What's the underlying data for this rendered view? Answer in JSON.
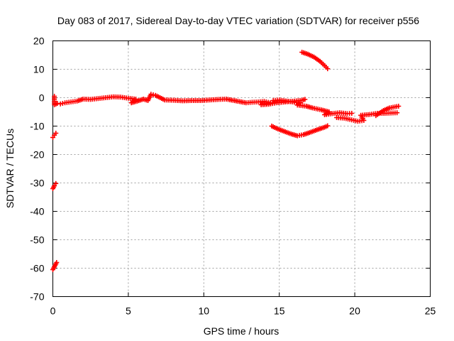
{
  "chart_data": {
    "type": "scatter",
    "title": "Day 083 of 2017, Sidereal Day-to-day VTEC variation (SDTVAR) for receiver p556",
    "xlabel": "GPS time / hours",
    "ylabel": "SDTVAR / TECUs",
    "xlim": [
      0,
      25
    ],
    "ylim": [
      -70,
      20
    ],
    "xticks": [
      "0",
      "5",
      "10",
      "15",
      "20",
      "25"
    ],
    "yticks": [
      "20",
      "10",
      "0",
      "-10",
      "-20",
      "-30",
      "-40",
      "-50",
      "-60",
      "-70"
    ],
    "grid": true,
    "legend": "none",
    "marker": "plus",
    "color": "#ff0000",
    "series": [
      {
        "points": [
          [
            0.0,
            -60.5
          ],
          [
            0.1,
            -59.5
          ],
          [
            0.2,
            -58.5
          ],
          [
            0.25,
            -58.0
          ],
          [
            0.0,
            -32.0
          ],
          [
            0.1,
            -31.0
          ],
          [
            0.2,
            -30.2
          ],
          [
            0.0,
            -14.0
          ],
          [
            0.1,
            -13.2
          ],
          [
            0.2,
            -12.5
          ],
          [
            0.1,
            0.5
          ],
          [
            0.1,
            -2.5
          ],
          [
            0.3,
            -2.0
          ],
          [
            0.5,
            -2.2
          ],
          [
            0.8,
            -1.8
          ],
          [
            1.2,
            -1.5
          ],
          [
            1.6,
            -1.2
          ],
          [
            2.0,
            -0.5
          ],
          [
            2.5,
            -0.6
          ],
          [
            3.0,
            -0.3
          ],
          [
            3.5,
            0.0
          ],
          [
            4.0,
            0.3
          ],
          [
            4.5,
            0.2
          ],
          [
            5.0,
            -0.2
          ],
          [
            5.5,
            -0.5
          ],
          [
            5.2,
            -1.8
          ],
          [
            5.6,
            -1.2
          ],
          [
            6.0,
            -0.5
          ],
          [
            6.3,
            -1.0
          ],
          [
            6.5,
            1.2
          ],
          [
            6.8,
            0.8
          ],
          [
            7.0,
            0.3
          ],
          [
            7.4,
            -0.8
          ],
          [
            8.0,
            -0.9
          ],
          [
            8.6,
            -1.1
          ],
          [
            9.2,
            -1.0
          ],
          [
            9.8,
            -1.0
          ],
          [
            10.4,
            -0.8
          ],
          [
            11.0,
            -0.6
          ],
          [
            11.5,
            -0.5
          ],
          [
            12.8,
            -1.8
          ],
          [
            13.2,
            -1.6
          ],
          [
            13.6,
            -1.5
          ],
          [
            14.0,
            -1.3
          ],
          [
            14.4,
            -1.8
          ],
          [
            13.8,
            -2.5
          ],
          [
            14.3,
            -2.3
          ],
          [
            14.8,
            -1.8
          ],
          [
            15.4,
            -1.5
          ],
          [
            16.0,
            -1.2
          ],
          [
            16.5,
            -0.9
          ],
          [
            16.7,
            -0.6
          ],
          [
            14.6,
            -1.0
          ],
          [
            15.0,
            -0.8
          ],
          [
            15.5,
            -1.2
          ],
          [
            16.0,
            -1.6
          ],
          [
            16.4,
            -1.8
          ],
          [
            16.2,
            -2.6
          ],
          [
            16.8,
            -3.0
          ],
          [
            17.2,
            -3.6
          ],
          [
            17.8,
            -4.3
          ],
          [
            18.3,
            -5.0
          ],
          [
            18.0,
            -6.0
          ],
          [
            18.5,
            -5.6
          ],
          [
            19.0,
            -5.3
          ],
          [
            19.5,
            -5.6
          ],
          [
            19.8,
            -5.5
          ],
          [
            18.8,
            -7.0
          ],
          [
            19.3,
            -7.2
          ],
          [
            19.8,
            -7.8
          ],
          [
            20.2,
            -8.3
          ],
          [
            20.6,
            -8.0
          ],
          [
            20.4,
            -6.2
          ],
          [
            21.0,
            -5.9
          ],
          [
            21.5,
            -5.5
          ],
          [
            22.0,
            -5.5
          ],
          [
            22.4,
            -5.4
          ],
          [
            22.8,
            -5.3
          ],
          [
            21.4,
            -6.3
          ],
          [
            21.9,
            -4.5
          ],
          [
            22.3,
            -3.6
          ],
          [
            22.9,
            -3.0
          ],
          [
            14.5,
            -10.0
          ],
          [
            14.9,
            -11.0
          ],
          [
            15.4,
            -12.0
          ],
          [
            15.8,
            -12.8
          ],
          [
            16.2,
            -13.4
          ],
          [
            16.6,
            -13.0
          ],
          [
            17.0,
            -12.3
          ],
          [
            17.5,
            -11.3
          ],
          [
            18.0,
            -10.4
          ],
          [
            18.2,
            -9.9
          ],
          [
            16.5,
            16.0
          ],
          [
            16.9,
            15.3
          ],
          [
            17.3,
            14.3
          ],
          [
            17.7,
            12.8
          ],
          [
            18.0,
            11.3
          ],
          [
            18.2,
            10.2
          ]
        ]
      }
    ]
  }
}
